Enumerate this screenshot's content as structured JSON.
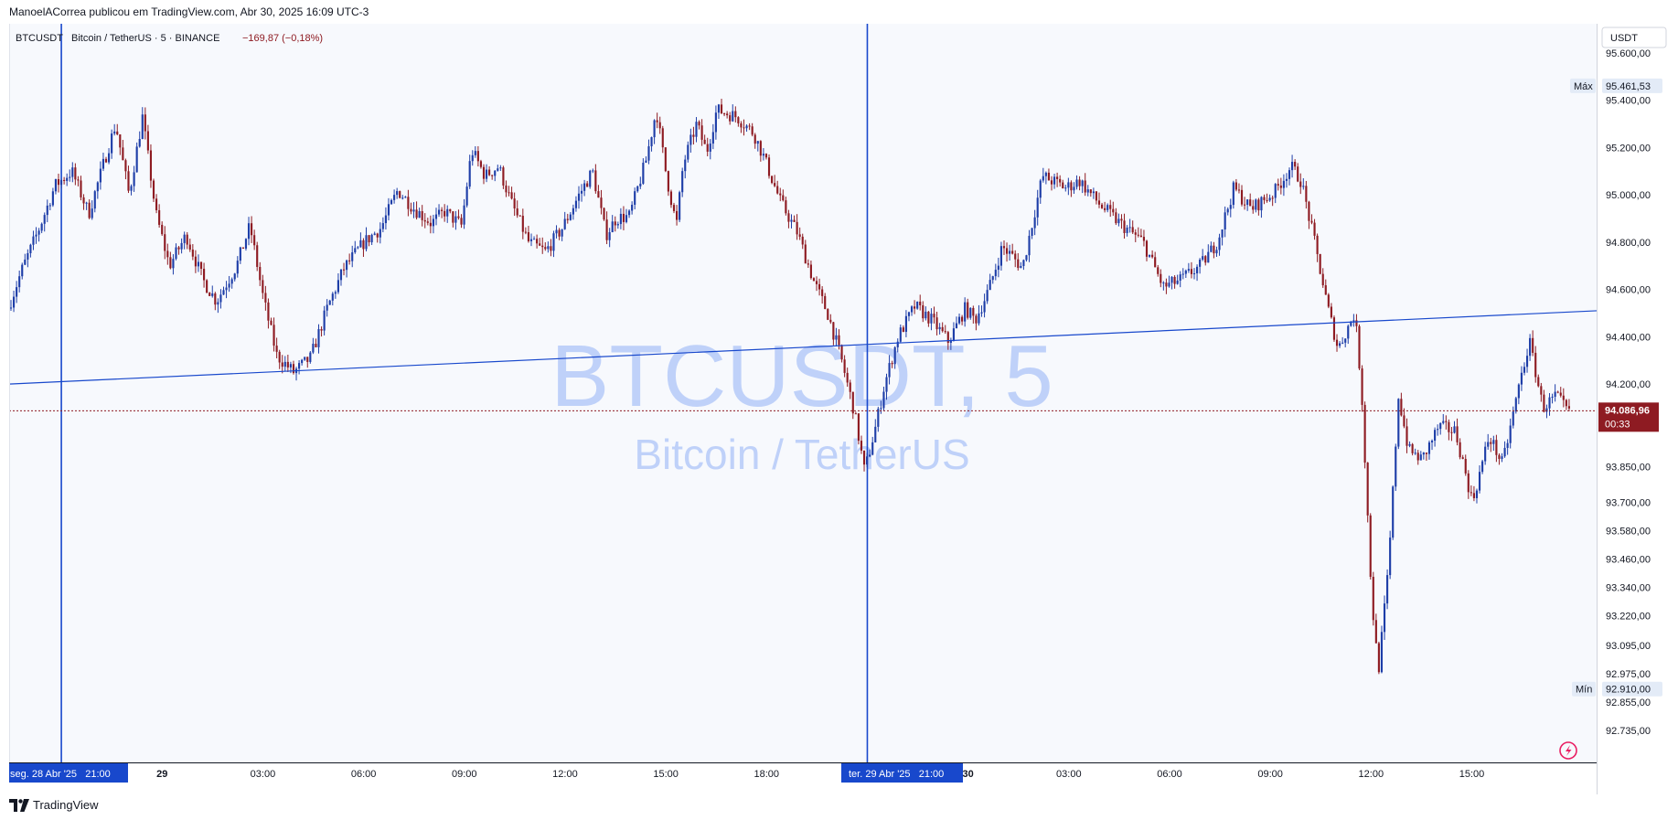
{
  "header": {
    "published_text": "ManoelACorrea publicou em TradingView.com, Abr 30, 2025 16:09 UTC-3"
  },
  "legend": {
    "symbol": "BTCUSDT",
    "description": "Bitcoin / TetherUS · 5 · BINANCE",
    "change": "−169,87 (−0,18%)"
  },
  "watermark": {
    "line1": "BTCUSDT, 5",
    "line2": "Bitcoin / TetherUS"
  },
  "price_axis": {
    "currency": "USDT",
    "max_label": "Máx",
    "min_label": "Mín",
    "max_value": "95.461,53",
    "min_value": "92.910,00",
    "last_price": "94.086,96",
    "countdown": "00:33"
  },
  "time_axis": {
    "selected_left": "seg. 28 Abr '25   21:00",
    "selected_right": "ter. 29 Abr '25   21:00"
  },
  "footer": {
    "brand": "TradingView"
  },
  "colors": {
    "up": "#1e3ea8",
    "down": "#8e1b22",
    "price_tag": "#8e1b22",
    "selection": "#1848cc",
    "trendline": "#1848cc",
    "watermark": "#2f6bf0",
    "max_min_tag_bg": "#e3ebf7"
  },
  "chart_data": {
    "type": "candlestick",
    "ylim": [
      92735,
      95600
    ],
    "y_ticks": [
      {
        "v": 95600,
        "label": "95.600,00"
      },
      {
        "v": 95400,
        "label": "95.400,00"
      },
      {
        "v": 95200,
        "label": "95.200,00"
      },
      {
        "v": 95000,
        "label": "95.000,00"
      },
      {
        "v": 94800,
        "label": "94.800,00"
      },
      {
        "v": 94600,
        "label": "94.600,00"
      },
      {
        "v": 94400,
        "label": "94.400,00"
      },
      {
        "v": 94200,
        "label": "94.200,00"
      },
      {
        "v": 93850,
        "label": "93.850,00"
      },
      {
        "v": 93700,
        "label": "93.700,00"
      },
      {
        "v": 93580,
        "label": "93.580,00"
      },
      {
        "v": 93460,
        "label": "93.460,00"
      },
      {
        "v": 93340,
        "label": "93.340,00"
      },
      {
        "v": 93220,
        "label": "93.220,00"
      },
      {
        "v": 93095,
        "label": "93.095,00"
      },
      {
        "v": 92975,
        "label": "92.975,00"
      },
      {
        "v": 92855,
        "label": "92.855,00"
      },
      {
        "v": 92735,
        "label": "92.735,00"
      }
    ],
    "x_ticks": [
      {
        "t": 0,
        "label": ""
      },
      {
        "t": 3,
        "label": "29",
        "bold": true
      },
      {
        "t": 6,
        "label": "03:00"
      },
      {
        "t": 9,
        "label": "06:00"
      },
      {
        "t": 12,
        "label": "09:00"
      },
      {
        "t": 15,
        "label": "12:00"
      },
      {
        "t": 18,
        "label": "15:00"
      },
      {
        "t": 21,
        "label": "18:00"
      },
      {
        "t": 24,
        "label": ""
      },
      {
        "t": 27,
        "label": "30",
        "bold": true
      },
      {
        "t": 30,
        "label": "03:00"
      },
      {
        "t": 33,
        "label": "06:00"
      },
      {
        "t": 36,
        "label": "09:00"
      },
      {
        "t": 39,
        "label": "12:00"
      },
      {
        "t": 42,
        "label": "15:00"
      }
    ],
    "x_range_hours": [
      -1.5,
      44.9
    ],
    "vertical_lines_hours": [
      0,
      24
    ],
    "trendline": [
      {
        "t": -1.5,
        "v": 94200
      },
      {
        "t": 44.9,
        "v": 94510
      }
    ],
    "last_price": 94086.96,
    "anchors": [
      [
        -1.5,
        94520
      ],
      [
        -1.1,
        94680
      ],
      [
        -0.6,
        94850
      ],
      [
        -0.1,
        95040
      ],
      [
        0.4,
        95100
      ],
      [
        0.9,
        94920
      ],
      [
        1.4,
        95160
      ],
      [
        1.7,
        95300
      ],
      [
        2.1,
        95000
      ],
      [
        2.5,
        95330
      ],
      [
        2.9,
        94920
      ],
      [
        3.3,
        94700
      ],
      [
        3.8,
        94830
      ],
      [
        4.3,
        94640
      ],
      [
        4.7,
        94550
      ],
      [
        5.3,
        94700
      ],
      [
        5.7,
        94870
      ],
      [
        6.1,
        94560
      ],
      [
        6.5,
        94320
      ],
      [
        7.0,
        94250
      ],
      [
        7.5,
        94310
      ],
      [
        8.0,
        94520
      ],
      [
        8.5,
        94690
      ],
      [
        9.1,
        94800
      ],
      [
        9.6,
        94860
      ],
      [
        10.1,
        95020
      ],
      [
        10.6,
        94940
      ],
      [
        11.1,
        94880
      ],
      [
        11.5,
        94930
      ],
      [
        12.0,
        94870
      ],
      [
        12.3,
        95190
      ],
      [
        12.7,
        95080
      ],
      [
        13.1,
        95120
      ],
      [
        13.5,
        94960
      ],
      [
        14.0,
        94800
      ],
      [
        14.5,
        94760
      ],
      [
        15.0,
        94860
      ],
      [
        15.5,
        95000
      ],
      [
        15.9,
        95100
      ],
      [
        16.3,
        94830
      ],
      [
        16.6,
        94900
      ],
      [
        17.0,
        94910
      ],
      [
        17.5,
        95150
      ],
      [
        17.8,
        95360
      ],
      [
        18.1,
        95080
      ],
      [
        18.4,
        94870
      ],
      [
        18.6,
        95130
      ],
      [
        19.0,
        95300
      ],
      [
        19.3,
        95180
      ],
      [
        19.6,
        95360
      ],
      [
        20.2,
        95330
      ],
      [
        20.7,
        95260
      ],
      [
        21.0,
        95160
      ],
      [
        21.5,
        94970
      ],
      [
        22.0,
        94840
      ],
      [
        22.5,
        94630
      ],
      [
        22.9,
        94500
      ],
      [
        23.3,
        94310
      ],
      [
        23.7,
        94080
      ],
      [
        24.0,
        93830
      ],
      [
        24.3,
        94000
      ],
      [
        24.6,
        94200
      ],
      [
        25.0,
        94400
      ],
      [
        25.5,
        94530
      ],
      [
        26.0,
        94470
      ],
      [
        26.5,
        94380
      ],
      [
        27.0,
        94520
      ],
      [
        27.3,
        94470
      ],
      [
        27.7,
        94600
      ],
      [
        28.1,
        94780
      ],
      [
        28.4,
        94740
      ],
      [
        28.7,
        94690
      ],
      [
        29.3,
        95080
      ],
      [
        30.0,
        95030
      ],
      [
        30.4,
        95060
      ],
      [
        31.0,
        94960
      ],
      [
        31.6,
        94880
      ],
      [
        32.3,
        94800
      ],
      [
        32.9,
        94610
      ],
      [
        33.4,
        94640
      ],
      [
        34.0,
        94700
      ],
      [
        34.5,
        94800
      ],
      [
        35.0,
        95030
      ],
      [
        35.5,
        94940
      ],
      [
        36.2,
        95010
      ],
      [
        36.7,
        95120
      ],
      [
        37.0,
        95060
      ],
      [
        37.4,
        94800
      ],
      [
        37.8,
        94520
      ],
      [
        38.1,
        94350
      ],
      [
        38.6,
        94500
      ],
      [
        38.8,
        94180
      ],
      [
        39.1,
        93300
      ],
      [
        39.3,
        92980
      ],
      [
        39.6,
        93420
      ],
      [
        39.9,
        94150
      ],
      [
        40.2,
        93920
      ],
      [
        40.6,
        93880
      ],
      [
        41.1,
        94020
      ],
      [
        41.6,
        94000
      ],
      [
        42.1,
        93700
      ],
      [
        42.6,
        93980
      ],
      [
        43.0,
        93860
      ],
      [
        43.5,
        94200
      ],
      [
        43.8,
        94380
      ],
      [
        44.2,
        94100
      ],
      [
        44.6,
        94150
      ],
      [
        44.9,
        94087
      ]
    ]
  }
}
